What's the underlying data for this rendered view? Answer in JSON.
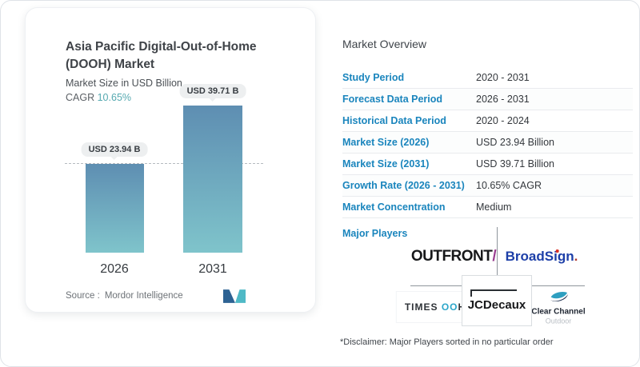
{
  "card": {
    "title_line1": "Asia Pacific Digital-Out-of-Home",
    "title_line2": "(DOOH) Market",
    "subtitle": "Market Size in USD Billion",
    "cagr_label": "CAGR",
    "cagr_value": "10.65%",
    "source_label": "Source :",
    "source_value": "Mordor Intelligence",
    "logo_icon": "mordor-intelligence-m-mark"
  },
  "chart_data": {
    "type": "bar",
    "categories": [
      "2026",
      "2031"
    ],
    "values": [
      23.94,
      39.71
    ],
    "bar_labels": [
      "USD 23.94 B",
      "USD 39.71 B"
    ],
    "title": "Asia Pacific Digital-Out-of-Home (DOOH) Market",
    "xlabel": "",
    "ylabel": "Market Size in USD Billion",
    "ylim": [
      0,
      39.71
    ],
    "reference_line": 23.94,
    "cagr": "10.65%",
    "grid": false,
    "legend": "none",
    "bar_gradient": [
      "#5e8eb2",
      "#7fc4cb"
    ]
  },
  "overview": {
    "heading": "Market Overview",
    "rows": [
      {
        "label": "Study Period",
        "value": "2020 - 2031"
      },
      {
        "label": "Forecast Data Period",
        "value": "2026 - 2031"
      },
      {
        "label": "Historical Data Period",
        "value": "2020 - 2024"
      },
      {
        "label": "Market Size (2026)",
        "value": "USD 23.94 Billion"
      },
      {
        "label": "Market Size (2031)",
        "value": "USD 39.71 Billion"
      },
      {
        "label": "Growth Rate (2026 - 2031)",
        "value": "10.65% CAGR"
      },
      {
        "label": "Market Concentration",
        "value": "Medium"
      }
    ],
    "major_players_label": "Major Players",
    "players": {
      "outfront": {
        "text": "OUTFRONT",
        "slash": "/"
      },
      "broadsign": {
        "text": "BroadSign",
        "dot": "."
      },
      "times_ooh": {
        "part1": "TIMES ",
        "part2": "OO",
        "part3": "H"
      },
      "jcdecaux": {
        "text": "JCDecaux"
      },
      "clear_channel": {
        "line1": "Clear Channel",
        "line2": "Outdoor"
      }
    },
    "disclaimer": "*Disclaimer: Major Players sorted in no particular order"
  },
  "colors": {
    "accent_blue": "#1a85bd",
    "teal": "#55a9b0",
    "bar_top": "#5e8eb2",
    "bar_bottom": "#7fc4cb",
    "outfront_purple": "#993c90",
    "broadsign_blue": "#1d3fa8",
    "broadsign_dot_red": "#d93025",
    "times_ooh_teal": "#2ba6c9",
    "clearchannel_teal": "#2e9fc0",
    "divider_gray": "#8f969c"
  }
}
